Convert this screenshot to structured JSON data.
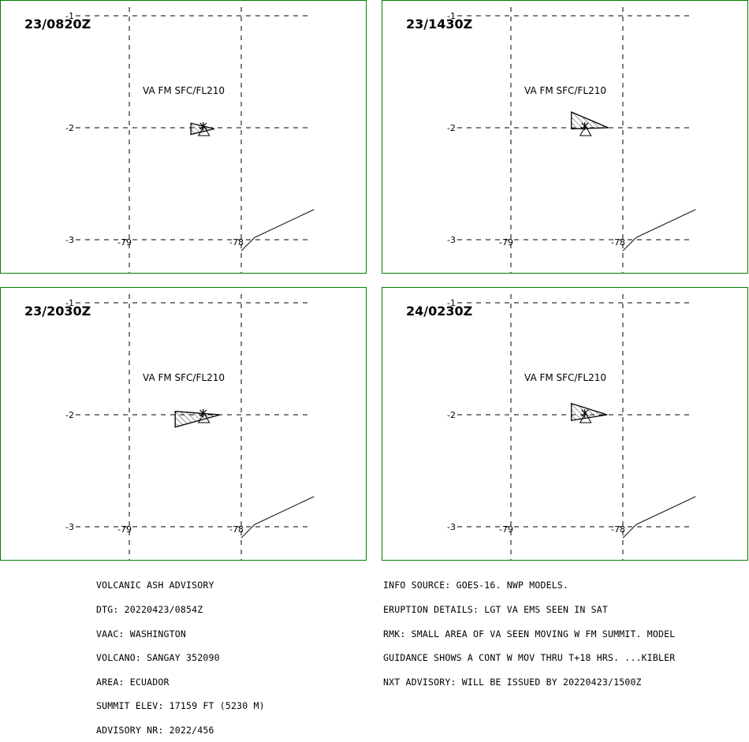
{
  "map": {
    "grid": {
      "lat_lines": [
        -1,
        -2,
        -3
      ],
      "lon_lines": [
        -79,
        -78
      ],
      "lat_labels": [
        "-1",
        "-2",
        "-3"
      ],
      "lon_labels": [
        "-79",
        "-78"
      ]
    },
    "layer_label": "VA FM SFC/FL210",
    "panels": [
      {
        "time": "23/0820Z",
        "label": "VA FM SFC/FL210",
        "polygon": [
          [
            -78.45,
            -1.96
          ],
          [
            -78.24,
            -2.01
          ],
          [
            -78.45,
            -2.06
          ]
        ]
      },
      {
        "time": "23/1430Z",
        "label": "VA FM SFC/FL210",
        "polygon": [
          [
            -78.46,
            -1.86
          ],
          [
            -78.13,
            -2.0
          ],
          [
            -78.46,
            -2.01
          ]
        ]
      },
      {
        "time": "23/2030Z",
        "label": "VA FM SFC/FL210",
        "polygon": [
          [
            -78.59,
            -1.97
          ],
          [
            -78.19,
            -2.0
          ],
          [
            -78.59,
            -2.11
          ]
        ]
      },
      {
        "time": "24/0230Z",
        "label": "VA FM SFC/FL210",
        "polygon": [
          [
            -78.46,
            -1.9
          ],
          [
            -78.14,
            -2.0
          ],
          [
            -78.46,
            -2.05
          ]
        ]
      }
    ],
    "volcano": {
      "lon": -78.34,
      "lat": -2.0
    },
    "coastline": [
      [
        -78.0,
        -3.1
      ],
      [
        -77.88,
        -2.98
      ],
      [
        -77.35,
        -2.73
      ]
    ]
  },
  "advisory_left": {
    "lines": [
      "VOLCANIC ASH ADVISORY",
      "DTG: 20220423/0854Z",
      "VAAC: WASHINGTON",
      "VOLCANO: SANGAY 352090",
      "AREA: ECUADOR",
      "SUMMIT ELEV: 17159 FT (5230 M)",
      "ADVISORY NR: 2022/456"
    ]
  },
  "advisory_right": {
    "lines": [
      "INFO SOURCE: GOES-16. NWP MODELS.",
      "ERUPTION DETAILS: LGT VA EMS SEEN IN SAT",
      "RMK: SMALL AREA OF VA SEEN MOVING W FM SUMMIT. MODEL",
      "GUIDANCE SHOWS A CONT W MOV THRU T+18 HRS. ...KIBLER",
      "NXT ADVISORY: WILL BE ISSUED BY 20220423/1500Z"
    ]
  },
  "colors": {
    "panel_border": "#008000",
    "ink": "#000000",
    "background": "#ffffff"
  }
}
